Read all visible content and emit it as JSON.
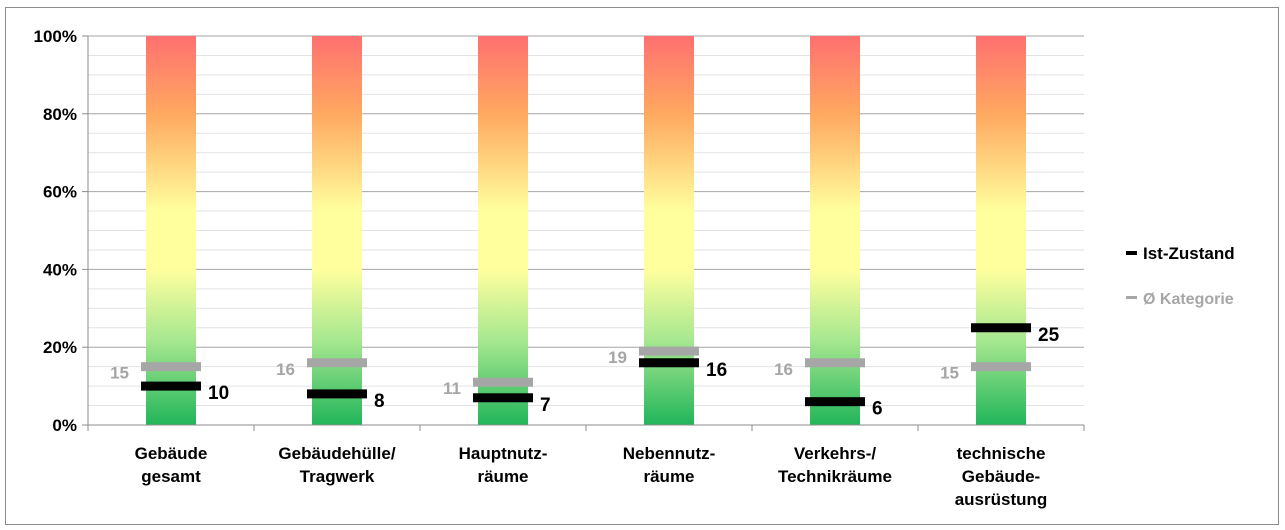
{
  "chart_data": {
    "type": "bar",
    "chart_style": "condition gradient columns with marker lines",
    "categories": [
      [
        "Gebäude",
        "gesamt"
      ],
      [
        "Gebäudehülle/",
        "Tragwerk"
      ],
      [
        "Hauptnutz-",
        "räume"
      ],
      [
        "Nebennutz-",
        "räume"
      ],
      [
        "Verkehrs-/",
        "Technikräume"
      ],
      [
        "technische",
        "Gebäude-",
        "ausrüstung"
      ]
    ],
    "series": [
      {
        "name": "Ist-Zustand",
        "values": [
          10,
          8,
          7,
          16,
          6,
          25
        ],
        "color": "#000000"
      },
      {
        "name": "Ø Kategorie",
        "values": [
          15,
          16,
          11,
          19,
          16,
          15
        ],
        "color": "#a6a6a6"
      }
    ],
    "y_ticks": [
      "0%",
      "20%",
      "40%",
      "60%",
      "80%",
      "100%"
    ],
    "ylim": [
      0,
      100
    ],
    "gradient_colors": {
      "bottom": "#22b55a",
      "low": "#a8e890",
      "mid": "#ffff9e",
      "upper": "#ffa860",
      "top": "#ff7070"
    },
    "grid": true,
    "legend_position": "right"
  }
}
